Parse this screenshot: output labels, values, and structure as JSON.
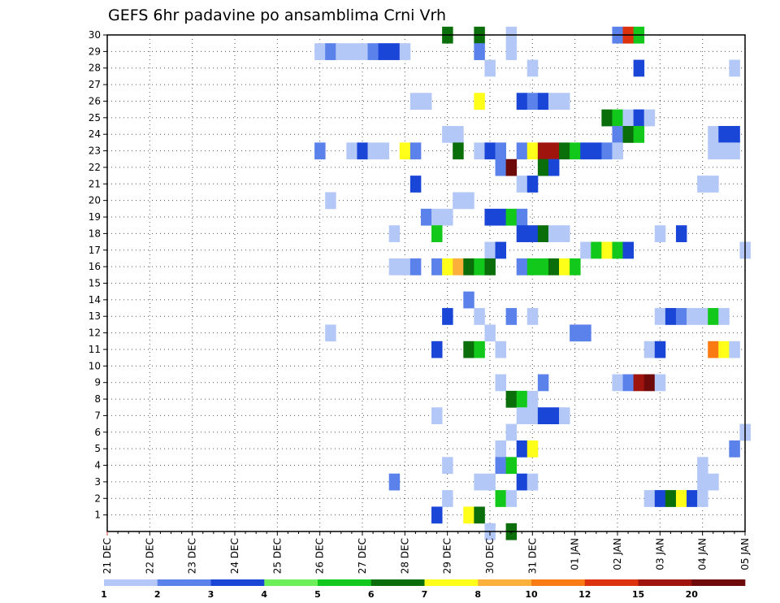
{
  "chart_data": {
    "type": "heatmap",
    "title": "GEFS 6hr padavine po ansamblima Crni Vrh",
    "xlabel": "",
    "ylabel": "",
    "x_tick_labels": [
      "21 DEC",
      "22 DEC",
      "23 DEC",
      "24 DEC",
      "25 DEC",
      "26 DEC",
      "27 DEC",
      "28 DEC",
      "29 DEC",
      "30 DEC",
      "31 DEC",
      "01 JAN",
      "02 JAN",
      "03 JAN",
      "04 JAN",
      "05 JAN"
    ],
    "y_tick_labels": [
      "1",
      "2",
      "3",
      "4",
      "5",
      "6",
      "7",
      "8",
      "9",
      "10",
      "11",
      "12",
      "13",
      "14",
      "15",
      "16",
      "17",
      "18",
      "19",
      "20",
      "21",
      "22",
      "23",
      "24",
      "25",
      "26",
      "27",
      "28",
      "29",
      "30"
    ],
    "y_range": [
      0,
      30
    ],
    "grid": true,
    "time_step_hours": 6,
    "colorbar": {
      "ticks": [
        "1",
        "2",
        "3",
        "4",
        "5",
        "6",
        "7",
        "8",
        "10",
        "12",
        "15",
        "20"
      ],
      "colors": [
        "#b4c8f8",
        "#5a82ea",
        "#1a46d8",
        "#6cf05a",
        "#12c81a",
        "#0a6e0a",
        "#ffff1a",
        "#fcb03c",
        "#fa7a14",
        "#dc320e",
        "#a0140e",
        "#6e0a0a"
      ]
    },
    "cells": [
      {
        "m": 30,
        "t": "29 DEC 00",
        "c": 6
      },
      {
        "m": 30,
        "t": "29 DEC 18",
        "c": 6
      },
      {
        "m": 30,
        "t": "30 DEC 12",
        "c": 1
      },
      {
        "m": 30,
        "t": "02 JAN 00",
        "c": 2
      },
      {
        "m": 30,
        "t": "02 JAN 06",
        "c": 10
      },
      {
        "m": 30,
        "t": "02 JAN 12",
        "c": 5
      },
      {
        "m": 29,
        "t": "26 DEC 00",
        "c": 1
      },
      {
        "m": 29,
        "t": "26 DEC 06",
        "c": 2
      },
      {
        "m": 29,
        "t": "26 DEC 12",
        "c": 1
      },
      {
        "m": 29,
        "t": "26 DEC 18",
        "c": 1
      },
      {
        "m": 29,
        "t": "27 DEC 00",
        "c": 1
      },
      {
        "m": 29,
        "t": "27 DEC 06",
        "c": 2
      },
      {
        "m": 29,
        "t": "27 DEC 12",
        "c": 3
      },
      {
        "m": 29,
        "t": "27 DEC 18",
        "c": 3
      },
      {
        "m": 29,
        "t": "28 DEC 00",
        "c": 1
      },
      {
        "m": 29,
        "t": "29 DEC 18",
        "c": 2
      },
      {
        "m": 29,
        "t": "30 DEC 12",
        "c": 1
      },
      {
        "m": 28,
        "t": "30 DEC 00",
        "c": 1
      },
      {
        "m": 28,
        "t": "31 DEC 00",
        "c": 1
      },
      {
        "m": 28,
        "t": "02 JAN 12",
        "c": 3
      },
      {
        "m": 28,
        "t": "04 JAN 18",
        "c": 1
      },
      {
        "m": 26,
        "t": "28 DEC 06",
        "c": 1
      },
      {
        "m": 26,
        "t": "28 DEC 12",
        "c": 1
      },
      {
        "m": 26,
        "t": "29 DEC 18",
        "c": 7
      },
      {
        "m": 26,
        "t": "30 DEC 18",
        "c": 3
      },
      {
        "m": 26,
        "t": "31 DEC 00",
        "c": 2
      },
      {
        "m": 26,
        "t": "31 DEC 06",
        "c": 3
      },
      {
        "m": 26,
        "t": "31 DEC 12",
        "c": 1
      },
      {
        "m": 26,
        "t": "31 DEC 18",
        "c": 1
      },
      {
        "m": 25,
        "t": "01 JAN 18",
        "c": 6
      },
      {
        "m": 25,
        "t": "02 JAN 00",
        "c": 5
      },
      {
        "m": 25,
        "t": "02 JAN 06",
        "c": 1
      },
      {
        "m": 25,
        "t": "02 JAN 12",
        "c": 3
      },
      {
        "m": 25,
        "t": "02 JAN 18",
        "c": 1
      },
      {
        "m": 24,
        "t": "29 DEC 00",
        "c": 1
      },
      {
        "m": 24,
        "t": "29 DEC 06",
        "c": 1
      },
      {
        "m": 24,
        "t": "02 JAN 00",
        "c": 2
      },
      {
        "m": 24,
        "t": "02 JAN 06",
        "c": 6
      },
      {
        "m": 24,
        "t": "02 JAN 12",
        "c": 5
      },
      {
        "m": 24,
        "t": "04 JAN 06",
        "c": 1
      },
      {
        "m": 24,
        "t": "04 JAN 12",
        "c": 3
      },
      {
        "m": 24,
        "t": "04 JAN 18",
        "c": 3
      },
      {
        "m": 23,
        "t": "26 DEC 00",
        "c": 2
      },
      {
        "m": 23,
        "t": "26 DEC 18",
        "c": 1
      },
      {
        "m": 23,
        "t": "27 DEC 00",
        "c": 3
      },
      {
        "m": 23,
        "t": "27 DEC 06",
        "c": 1
      },
      {
        "m": 23,
        "t": "27 DEC 12",
        "c": 1
      },
      {
        "m": 23,
        "t": "28 DEC 00",
        "c": 7
      },
      {
        "m": 23,
        "t": "28 DEC 06",
        "c": 2
      },
      {
        "m": 23,
        "t": "29 DEC 06",
        "c": 6
      },
      {
        "m": 23,
        "t": "29 DEC 18",
        "c": 1
      },
      {
        "m": 23,
        "t": "30 DEC 00",
        "c": 3
      },
      {
        "m": 23,
        "t": "30 DEC 06",
        "c": 2
      },
      {
        "m": 23,
        "t": "30 DEC 18",
        "c": 2
      },
      {
        "m": 23,
        "t": "31 DEC 00",
        "c": 7
      },
      {
        "m": 23,
        "t": "31 DEC 06",
        "c": 11
      },
      {
        "m": 23,
        "t": "31 DEC 12",
        "c": 11
      },
      {
        "m": 23,
        "t": "31 DEC 18",
        "c": 6
      },
      {
        "m": 23,
        "t": "01 JAN 00",
        "c": 5
      },
      {
        "m": 23,
        "t": "01 JAN 06",
        "c": 3
      },
      {
        "m": 23,
        "t": "01 JAN 12",
        "c": 3
      },
      {
        "m": 23,
        "t": "01 JAN 18",
        "c": 2
      },
      {
        "m": 23,
        "t": "02 JAN 00",
        "c": 1
      },
      {
        "m": 23,
        "t": "04 JAN 06",
        "c": 1
      },
      {
        "m": 23,
        "t": "04 JAN 12",
        "c": 1
      },
      {
        "m": 23,
        "t": "04 JAN 18",
        "c": 1
      },
      {
        "m": 22,
        "t": "30 DEC 06",
        "c": 2
      },
      {
        "m": 22,
        "t": "30 DEC 12",
        "c": 12
      },
      {
        "m": 22,
        "t": "31 DEC 06",
        "c": 6
      },
      {
        "m": 22,
        "t": "31 DEC 12",
        "c": 3
      },
      {
        "m": 21,
        "t": "28 DEC 06",
        "c": 3
      },
      {
        "m": 21,
        "t": "30 DEC 18",
        "c": 1
      },
      {
        "m": 21,
        "t": "31 DEC 00",
        "c": 3
      },
      {
        "m": 21,
        "t": "04 JAN 00",
        "c": 1
      },
      {
        "m": 21,
        "t": "04 JAN 06",
        "c": 1
      },
      {
        "m": 20,
        "t": "26 DEC 06",
        "c": 1
      },
      {
        "m": 20,
        "t": "29 DEC 06",
        "c": 1
      },
      {
        "m": 20,
        "t": "29 DEC 12",
        "c": 1
      },
      {
        "m": 19,
        "t": "28 DEC 12",
        "c": 2
      },
      {
        "m": 19,
        "t": "28 DEC 18",
        "c": 1
      },
      {
        "m": 19,
        "t": "29 DEC 00",
        "c": 1
      },
      {
        "m": 19,
        "t": "30 DEC 00",
        "c": 3
      },
      {
        "m": 19,
        "t": "30 DEC 06",
        "c": 3
      },
      {
        "m": 19,
        "t": "30 DEC 12",
        "c": 5
      },
      {
        "m": 19,
        "t": "30 DEC 18",
        "c": 2
      },
      {
        "m": 18,
        "t": "27 DEC 18",
        "c": 1
      },
      {
        "m": 18,
        "t": "28 DEC 18",
        "c": 5
      },
      {
        "m": 18,
        "t": "30 DEC 18",
        "c": 3
      },
      {
        "m": 18,
        "t": "31 DEC 00",
        "c": 3
      },
      {
        "m": 18,
        "t": "31 DEC 06",
        "c": 6
      },
      {
        "m": 18,
        "t": "31 DEC 12",
        "c": 1
      },
      {
        "m": 18,
        "t": "31 DEC 18",
        "c": 1
      },
      {
        "m": 18,
        "t": "03 JAN 00",
        "c": 1
      },
      {
        "m": 18,
        "t": "03 JAN 12",
        "c": 3
      },
      {
        "m": 17,
        "t": "30 DEC 00",
        "c": 1
      },
      {
        "m": 17,
        "t": "30 DEC 06",
        "c": 3
      },
      {
        "m": 17,
        "t": "01 JAN 06",
        "c": 1
      },
      {
        "m": 17,
        "t": "01 JAN 12",
        "c": 5
      },
      {
        "m": 17,
        "t": "01 JAN 18",
        "c": 7
      },
      {
        "m": 17,
        "t": "02 JAN 00",
        "c": 5
      },
      {
        "m": 17,
        "t": "02 JAN 06",
        "c": 3
      },
      {
        "m": 17,
        "t": "05 JAN 00",
        "c": 1
      },
      {
        "m": 16,
        "t": "27 DEC 18",
        "c": 1
      },
      {
        "m": 16,
        "t": "28 DEC 00",
        "c": 1
      },
      {
        "m": 16,
        "t": "28 DEC 06",
        "c": 2
      },
      {
        "m": 16,
        "t": "28 DEC 18",
        "c": 2
      },
      {
        "m": 16,
        "t": "29 DEC 00",
        "c": 7
      },
      {
        "m": 16,
        "t": "29 DEC 06",
        "c": 8
      },
      {
        "m": 16,
        "t": "29 DEC 12",
        "c": 6
      },
      {
        "m": 16,
        "t": "29 DEC 18",
        "c": 5
      },
      {
        "m": 16,
        "t": "30 DEC 00",
        "c": 6
      },
      {
        "m": 16,
        "t": "30 DEC 18",
        "c": 2
      },
      {
        "m": 16,
        "t": "31 DEC 00",
        "c": 5
      },
      {
        "m": 16,
        "t": "31 DEC 06",
        "c": 5
      },
      {
        "m": 16,
        "t": "31 DEC 12",
        "c": 6
      },
      {
        "m": 16,
        "t": "31 DEC 18",
        "c": 7
      },
      {
        "m": 16,
        "t": "01 JAN 00",
        "c": 5
      },
      {
        "m": 14,
        "t": "29 DEC 12",
        "c": 2
      },
      {
        "m": 13,
        "t": "29 DEC 00",
        "c": 3
      },
      {
        "m": 13,
        "t": "29 DEC 18",
        "c": 1
      },
      {
        "m": 13,
        "t": "30 DEC 12",
        "c": 2
      },
      {
        "m": 13,
        "t": "31 DEC 00",
        "c": 1
      },
      {
        "m": 13,
        "t": "03 JAN 00",
        "c": 1
      },
      {
        "m": 13,
        "t": "03 JAN 06",
        "c": 3
      },
      {
        "m": 13,
        "t": "03 JAN 12",
        "c": 2
      },
      {
        "m": 13,
        "t": "03 JAN 18",
        "c": 1
      },
      {
        "m": 13,
        "t": "04 JAN 00",
        "c": 1
      },
      {
        "m": 13,
        "t": "04 JAN 06",
        "c": 5
      },
      {
        "m": 13,
        "t": "04 JAN 12",
        "c": 1
      },
      {
        "m": 12,
        "t": "26 DEC 06",
        "c": 1
      },
      {
        "m": 12,
        "t": "30 DEC 00",
        "c": 1
      },
      {
        "m": 12,
        "t": "01 JAN 00",
        "c": 2
      },
      {
        "m": 12,
        "t": "01 JAN 06",
        "c": 2
      },
      {
        "m": 11,
        "t": "28 DEC 18",
        "c": 3
      },
      {
        "m": 11,
        "t": "29 DEC 12",
        "c": 6
      },
      {
        "m": 11,
        "t": "29 DEC 18",
        "c": 5
      },
      {
        "m": 11,
        "t": "30 DEC 06",
        "c": 1
      },
      {
        "m": 11,
        "t": "02 JAN 18",
        "c": 1
      },
      {
        "m": 11,
        "t": "03 JAN 00",
        "c": 3
      },
      {
        "m": 11,
        "t": "04 JAN 06",
        "c": 9
      },
      {
        "m": 11,
        "t": "04 JAN 12",
        "c": 7
      },
      {
        "m": 11,
        "t": "04 JAN 18",
        "c": 1
      },
      {
        "m": 9,
        "t": "30 DEC 06",
        "c": 1
      },
      {
        "m": 9,
        "t": "31 DEC 06",
        "c": 2
      },
      {
        "m": 9,
        "t": "02 JAN 00",
        "c": 1
      },
      {
        "m": 9,
        "t": "02 JAN 06",
        "c": 2
      },
      {
        "m": 9,
        "t": "02 JAN 12",
        "c": 11
      },
      {
        "m": 9,
        "t": "02 JAN 18",
        "c": 12
      },
      {
        "m": 9,
        "t": "03 JAN 00",
        "c": 1
      },
      {
        "m": 8,
        "t": "30 DEC 12",
        "c": 6
      },
      {
        "m": 8,
        "t": "30 DEC 18",
        "c": 5
      },
      {
        "m": 8,
        "t": "31 DEC 00",
        "c": 1
      },
      {
        "m": 7,
        "t": "28 DEC 18",
        "c": 1
      },
      {
        "m": 7,
        "t": "30 DEC 18",
        "c": 1
      },
      {
        "m": 7,
        "t": "31 DEC 00",
        "c": 1
      },
      {
        "m": 7,
        "t": "31 DEC 06",
        "c": 3
      },
      {
        "m": 7,
        "t": "31 DEC 12",
        "c": 3
      },
      {
        "m": 7,
        "t": "31 DEC 18",
        "c": 1
      },
      {
        "m": 6,
        "t": "30 DEC 12",
        "c": 1
      },
      {
        "m": 6,
        "t": "05 JAN 00",
        "c": 1
      },
      {
        "m": 5,
        "t": "30 DEC 06",
        "c": 1
      },
      {
        "m": 5,
        "t": "30 DEC 18",
        "c": 3
      },
      {
        "m": 5,
        "t": "31 DEC 00",
        "c": 7
      },
      {
        "m": 5,
        "t": "04 JAN 18",
        "c": 2
      },
      {
        "m": 4,
        "t": "29 DEC 00",
        "c": 1
      },
      {
        "m": 4,
        "t": "30 DEC 06",
        "c": 2
      },
      {
        "m": 4,
        "t": "30 DEC 12",
        "c": 5
      },
      {
        "m": 4,
        "t": "04 JAN 00",
        "c": 1
      },
      {
        "m": 3,
        "t": "27 DEC 18",
        "c": 2
      },
      {
        "m": 3,
        "t": "29 DEC 18",
        "c": 1
      },
      {
        "m": 3,
        "t": "30 DEC 00",
        "c": 1
      },
      {
        "m": 3,
        "t": "30 DEC 18",
        "c": 3
      },
      {
        "m": 3,
        "t": "31 DEC 00",
        "c": 1
      },
      {
        "m": 3,
        "t": "04 JAN 00",
        "c": 1
      },
      {
        "m": 3,
        "t": "04 JAN 06",
        "c": 1
      },
      {
        "m": 2,
        "t": "29 DEC 00",
        "c": 1
      },
      {
        "m": 2,
        "t": "30 DEC 06",
        "c": 5
      },
      {
        "m": 2,
        "t": "30 DEC 12",
        "c": 1
      },
      {
        "m": 2,
        "t": "02 JAN 18",
        "c": 1
      },
      {
        "m": 2,
        "t": "03 JAN 00",
        "c": 3
      },
      {
        "m": 2,
        "t": "03 JAN 06",
        "c": 6
      },
      {
        "m": 2,
        "t": "03 JAN 12",
        "c": 7
      },
      {
        "m": 2,
        "t": "03 JAN 18",
        "c": 3
      },
      {
        "m": 2,
        "t": "04 JAN 00",
        "c": 1
      },
      {
        "m": 1,
        "t": "28 DEC 18",
        "c": 3
      },
      {
        "m": 1,
        "t": "29 DEC 12",
        "c": 7
      },
      {
        "m": 1,
        "t": "29 DEC 18",
        "c": 6
      },
      {
        "m": 0,
        "t": "30 DEC 00",
        "c": 1
      },
      {
        "m": 0,
        "t": "30 DEC 12",
        "c": 6
      }
    ]
  }
}
